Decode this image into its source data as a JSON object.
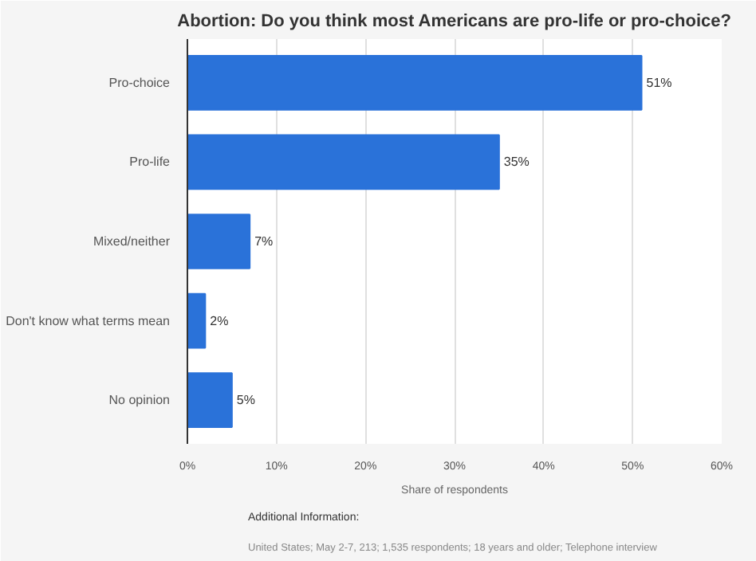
{
  "chart_data": {
    "type": "bar",
    "orientation": "horizontal",
    "title": "Abortion: Do you think most Americans are pro-life or pro-choice?",
    "categories": [
      "Pro-choice",
      "Pro-life",
      "Mixed/neither",
      "Don't know what terms mean",
      "No opinion"
    ],
    "values": [
      51,
      35,
      7,
      2,
      5
    ],
    "color": "#2a72d9",
    "value_labels": [
      "51%",
      "35%",
      "7%",
      "2%",
      "5%"
    ],
    "xlabel": "Share of respondents",
    "xlim": [
      0,
      60
    ],
    "xticks": [
      {
        "value": 0,
        "label": "0%"
      },
      {
        "value": 10,
        "label": "10%"
      },
      {
        "value": 20,
        "label": "20%"
      },
      {
        "value": 30,
        "label": "30%"
      },
      {
        "value": 40,
        "label": "40%"
      },
      {
        "value": 50,
        "label": "50%"
      },
      {
        "value": 60,
        "label": "60%"
      }
    ],
    "grid": "x",
    "annotations": [
      "Additional Information:",
      "United States; May 2-7, 213; 1,535 respondents; 18 years and older; Telephone interview"
    ]
  }
}
